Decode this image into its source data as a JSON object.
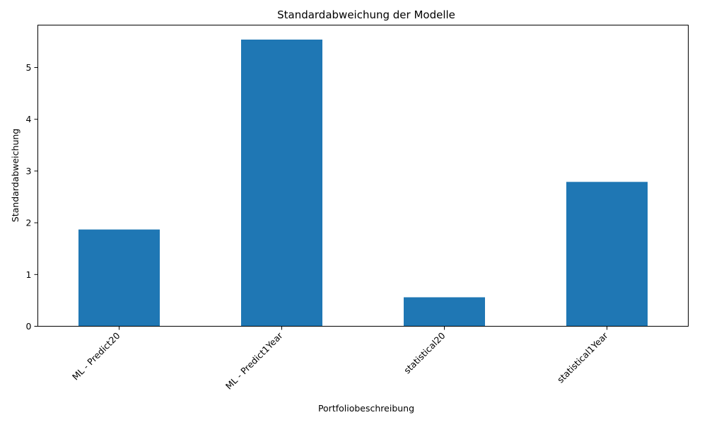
{
  "chart_data": {
    "type": "bar",
    "title": "Standardabweichung der Modelle",
    "xlabel": "Portfoliobeschreibung",
    "ylabel": "Standardabweichung",
    "categories": [
      "ML - Predict20",
      "ML - Predict1Year",
      "statistical20",
      "statistical1Year"
    ],
    "values": [
      1.87,
      5.54,
      0.56,
      2.79
    ],
    "ylim": [
      0,
      5.82
    ],
    "yticks": [
      "0",
      "1",
      "2",
      "3",
      "4",
      "5"
    ],
    "grid": false,
    "legend": "none",
    "bar_color": "#1f77b4"
  }
}
